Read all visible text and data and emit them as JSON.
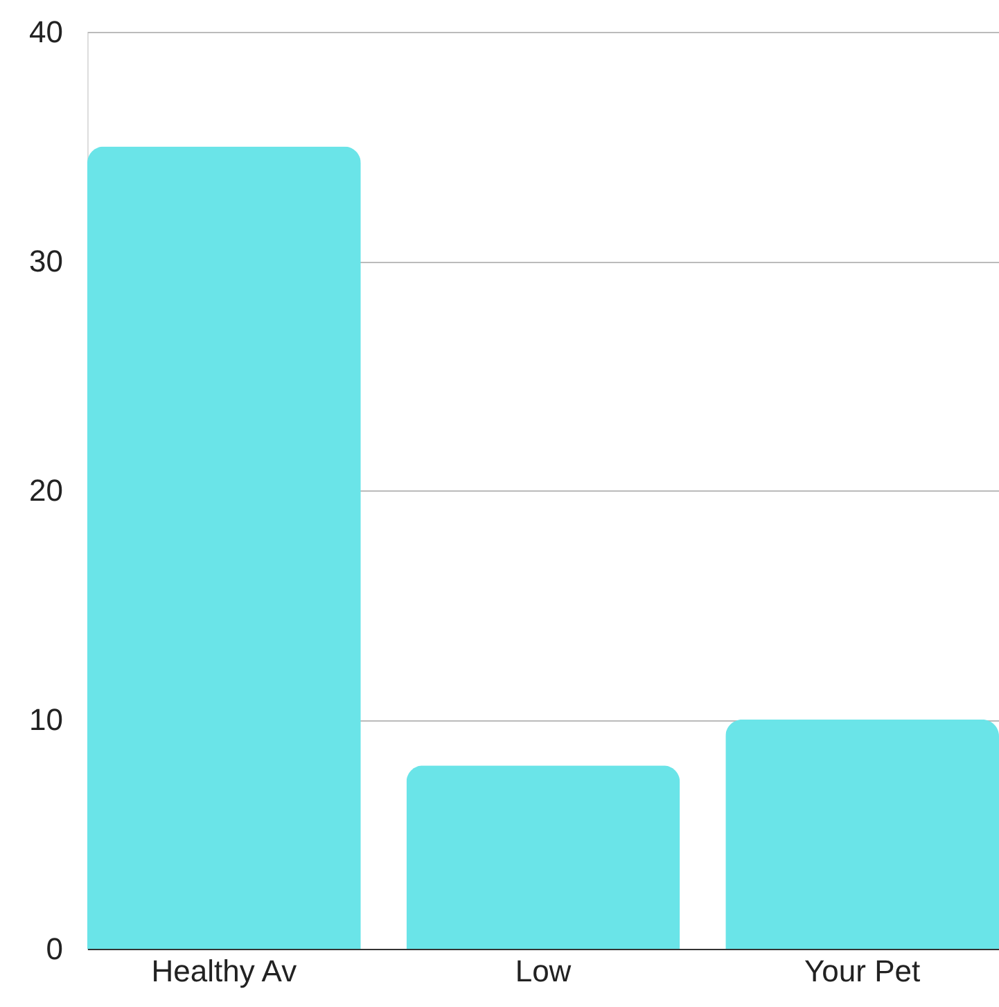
{
  "chart_data": {
    "type": "bar",
    "categories": [
      "Healthy Av",
      "Low",
      "Your Pet"
    ],
    "values": [
      35,
      8,
      10
    ],
    "color": "#6ae4e8",
    "ylim": [
      0,
      40
    ],
    "yticks": [
      0,
      10,
      20,
      30,
      40
    ],
    "grid": "y"
  }
}
